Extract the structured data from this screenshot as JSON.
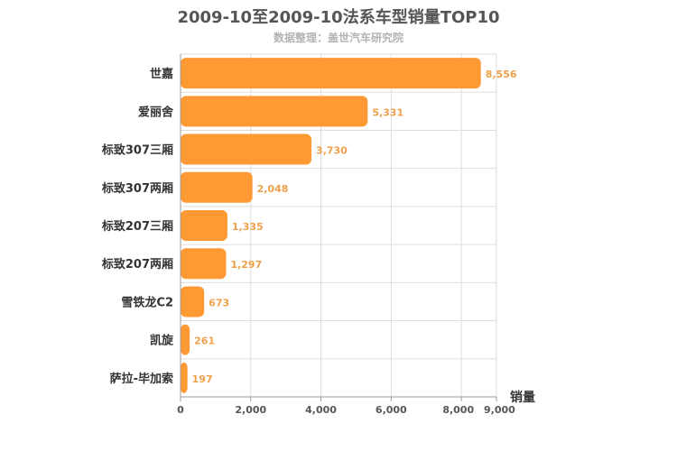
{
  "chart_data": {
    "type": "bar",
    "orientation": "horizontal",
    "title": "2009-10至2009-10法系车型销量TOP10",
    "subtitle": "数据整理：盖世汽车研究院",
    "xlabel": "销量",
    "ylabel": "",
    "categories": [
      "世嘉",
      "爱丽舍",
      "标致307三厢",
      "标致307两厢",
      "标致207三厢",
      "标致207两厢",
      "雪铁龙C2",
      "凯旋",
      "萨拉-毕加索"
    ],
    "values": [
      8556,
      5331,
      3730,
      2048,
      1335,
      1297,
      673,
      261,
      197
    ],
    "value_labels": [
      "8,556",
      "5,331",
      "3,730",
      "2,048",
      "1,335",
      "1,297",
      "673",
      "261",
      "197"
    ],
    "xlim": [
      0,
      9000
    ],
    "x_ticks": [
      0,
      2000,
      4000,
      6000,
      8000,
      9000
    ],
    "x_tick_labels": [
      "0",
      "2,000",
      "4,000",
      "6,000",
      "8,000",
      "9,000"
    ],
    "grid": true,
    "bar_color": "#ff9933",
    "value_label_color": "#f0a04a"
  }
}
